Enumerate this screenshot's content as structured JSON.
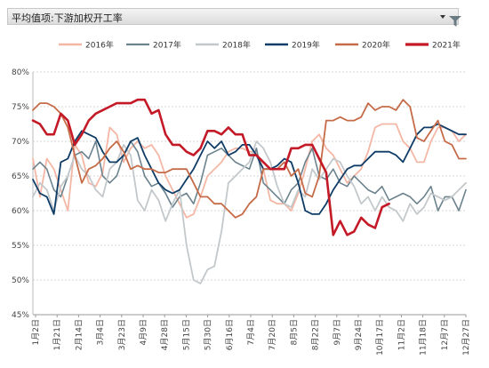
{
  "header": {
    "title": "平均值项:下游加权开工率",
    "filter_icon": "filter-icon",
    "dropdown_icon": "chevron-down-icon"
  },
  "chart_data": {
    "type": "line",
    "title": "",
    "xlabel": "",
    "ylabel": "",
    "ylim": [
      45,
      80
    ],
    "yticks": [
      "45%",
      "50%",
      "55%",
      "60%",
      "65%",
      "70%",
      "75%",
      "80%"
    ],
    "x_ticks": [
      "1月2日",
      "1月21日",
      "2月14日",
      "3月4日",
      "3月23日",
      "4月9日",
      "4月28日",
      "5月15日",
      "5月30日",
      "6月16日",
      "7月4日",
      "7月20日",
      "8月5日",
      "8月22日",
      "9月7日",
      "9月24日",
      "10月17日",
      "11月2日",
      "11月18日",
      "12月7日",
      "12月27日"
    ],
    "legend": {
      "placement": "top"
    },
    "series": [
      {
        "name": "2016年",
        "color": "#f4b7a5",
        "width": 1.8,
        "values": [
          67.5,
          62,
          67.5,
          66,
          63,
          60,
          69.5,
          68,
          64,
          63.5,
          65.5,
          72,
          71,
          67,
          69,
          70,
          69,
          69.5,
          68,
          65,
          63,
          61,
          59,
          59.5,
          62,
          65,
          66,
          67,
          68.5,
          69,
          69,
          68.5,
          68.5,
          66,
          61.5,
          61,
          61,
          60,
          62.5,
          66,
          70,
          71,
          69,
          68,
          66,
          64,
          65,
          66,
          68.5,
          72,
          72.5,
          72.5,
          72.5,
          70,
          69,
          67,
          67,
          70,
          72,
          72,
          71.5,
          70,
          71
        ]
      },
      {
        "name": "2017年",
        "color": "#6c838e",
        "width": 1.6,
        "values": [
          66,
          67,
          66,
          63,
          62,
          65,
          68,
          68.5,
          67.5,
          70,
          65,
          64,
          65,
          68,
          70,
          68.5,
          65,
          63.5,
          64,
          62.5,
          60.5,
          62,
          62.5,
          61,
          64,
          68,
          68.5,
          69,
          68,
          67,
          66.5,
          66,
          69,
          64,
          63,
          62,
          61,
          63,
          64,
          67,
          69,
          65,
          64.5,
          66,
          64,
          63.5,
          65,
          64,
          63,
          62.5,
          63.5,
          61.5,
          62,
          62.5,
          62,
          61,
          62,
          63.5,
          60,
          62,
          62,
          60,
          63
        ]
      },
      {
        "name": "2018年",
        "color": "#c3c8cb",
        "width": 1.8,
        "values": [
          62,
          64,
          63,
          60,
          63.5,
          65,
          68,
          66,
          65,
          63,
          62,
          66,
          67,
          69.5,
          68,
          61.5,
          60,
          63,
          61.5,
          58.5,
          61,
          63,
          55,
          50,
          49.5,
          51.5,
          52,
          57,
          64,
          65,
          66,
          67,
          70,
          69,
          67,
          63.5,
          61,
          60.5,
          63,
          62,
          66,
          64.5,
          66,
          67.5,
          67,
          65,
          63.5,
          61,
          62,
          60,
          62,
          60.5,
          60,
          58.5,
          61,
          59.5,
          60.5,
          62.5,
          62,
          61.5,
          62,
          63,
          64
        ]
      },
      {
        "name": "2019年",
        "color": "#0f3d67",
        "width": 1.8,
        "values": [
          64.5,
          62.5,
          62,
          59.5,
          67,
          67.5,
          70,
          71.5,
          71,
          70.5,
          68.5,
          67,
          67,
          68,
          70,
          70.5,
          68,
          66,
          64,
          63,
          62.5,
          63,
          64.5,
          66,
          68,
          70,
          69,
          70,
          68,
          68.5,
          69.5,
          69.5,
          68,
          66,
          66,
          66.5,
          67.5,
          67,
          64,
          60,
          59.5,
          59.5,
          61,
          63,
          64.5,
          66,
          66.5,
          66.5,
          67.5,
          68.5,
          68.5,
          68.5,
          68,
          67,
          69,
          71,
          72,
          72,
          72.5,
          72,
          71.5,
          71,
          71
        ]
      },
      {
        "name": "2020年",
        "color": "#c66b48",
        "width": 1.8,
        "values": [
          74.5,
          75.5,
          75.5,
          75,
          74,
          72,
          68,
          64,
          66,
          66.5,
          67.5,
          69,
          70,
          68.5,
          66,
          66.5,
          66,
          66,
          65.5,
          65.5,
          66,
          66,
          66,
          64,
          62,
          62,
          61,
          61,
          60,
          59,
          59.5,
          61,
          62,
          66,
          66,
          66,
          67,
          65,
          66,
          62.5,
          62,
          65,
          73,
          73,
          73.5,
          73,
          73,
          73.5,
          75.5,
          74.5,
          75,
          75,
          74.5,
          76,
          75,
          70.5,
          70,
          71.5,
          73,
          70,
          69.5,
          67.5,
          67.5
        ]
      },
      {
        "name": "2021年",
        "color": "#c41926",
        "width": 2.6,
        "values": [
          73,
          72.5,
          71,
          71,
          74,
          73,
          69.5,
          71,
          73,
          74,
          74.5,
          75,
          75.5,
          75.5,
          75.5,
          76,
          76,
          74,
          74.5,
          71,
          69.5,
          69.5,
          68.5,
          68,
          69,
          71.5,
          71.5,
          71,
          72,
          71,
          71,
          68,
          68,
          67,
          66,
          66,
          66,
          69,
          69,
          69.5,
          69.5,
          67.5,
          65.5,
          56.5,
          58.5,
          56.5,
          57,
          59,
          58,
          57.5,
          60.5,
          61
        ]
      }
    ]
  }
}
